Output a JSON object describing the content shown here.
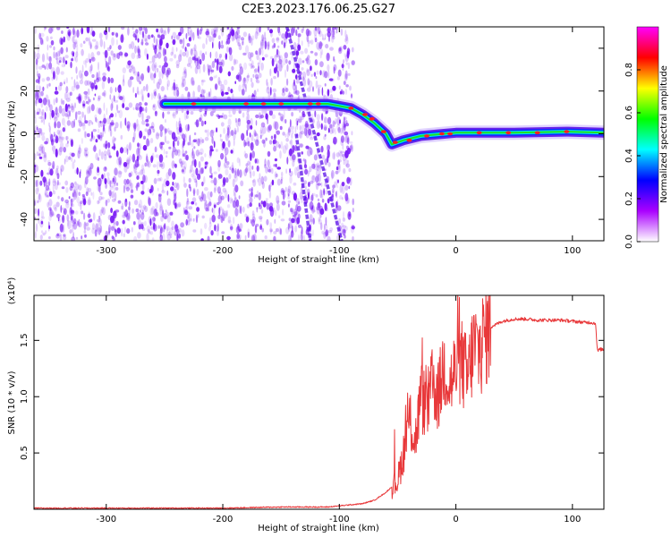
{
  "figure": {
    "title": "C2E3.2023.176.06.25.G27"
  },
  "chart_data": [
    {
      "type": "heatmap",
      "xlabel": "Height of straight line (km)",
      "ylabel": "Frequency (Hz)",
      "xlim": [
        -362,
        127
      ],
      "ylim": [
        -50,
        50
      ],
      "xticks": [
        -300,
        -200,
        -100,
        0,
        100
      ],
      "yticks": [
        -40,
        -20,
        0,
        20,
        40
      ],
      "colorbar": {
        "label": "Normalized spectral amplitude",
        "range": [
          0,
          1
        ],
        "ticks": [
          "0.0",
          "0.2",
          "0.4",
          "0.6",
          "0.8"
        ],
        "tick_values": [
          0,
          0.2,
          0.4,
          0.6,
          0.8
        ],
        "colormap": [
          "#ff00ff",
          "#ff0000",
          "#ffff00",
          "#00ff00",
          "#00ffff",
          "#0000ff",
          "#aa00ff",
          "#ffffff"
        ]
      },
      "noise_region": {
        "x_from": -362,
        "x_to": -88,
        "color": "#7a1cf5"
      },
      "features": [
        {
          "name": "signal-track",
          "points": [
            [
              -250,
              14
            ],
            [
              -200,
              14
            ],
            [
              -150,
              14
            ],
            [
              -110,
              14
            ],
            [
              -90,
              12
            ],
            [
              -80,
              9
            ],
            [
              -70,
              5
            ],
            [
              -60,
              0
            ],
            [
              -55,
              -5
            ],
            [
              -45,
              -3
            ],
            [
              -30,
              -1
            ],
            [
              -10,
              0
            ],
            [
              0,
              0.5
            ],
            [
              50,
              0.5
            ],
            [
              95,
              1
            ],
            [
              127,
              0.5
            ]
          ]
        },
        {
          "name": "slant-streak-1",
          "points": [
            [
              -145,
              50
            ],
            [
              -98,
              -50
            ]
          ]
        },
        {
          "name": "slant-streak-2",
          "points": [
            [
              -137,
              0
            ],
            [
              -125,
              -50
            ]
          ]
        }
      ]
    },
    {
      "type": "line",
      "xlabel": "Height of straight line (km)",
      "ylabel": "SNR (10 * v/v)",
      "exponent_label": "(x10⁴)",
      "xlim": [
        -362,
        127
      ],
      "ylim": [
        0,
        1.9
      ],
      "xticks": [
        -300,
        -200,
        -100,
        0,
        100
      ],
      "yticks": [
        0.5,
        1.0,
        1.5
      ],
      "series": [
        {
          "color": "#e8383a",
          "x": [
            -362,
            -300,
            -250,
            -200,
            -150,
            -110,
            -100,
            -90,
            -80,
            -70,
            -60,
            -50,
            -45,
            -40,
            -35,
            -30,
            -25,
            -20,
            -15,
            -10,
            -5,
            0,
            5,
            10,
            15,
            20,
            25,
            30,
            40,
            50,
            60,
            70,
            80,
            90,
            100,
            110,
            115,
            120,
            121,
            122,
            123,
            127
          ],
          "y": [
            0.01,
            0.01,
            0.01,
            0.01,
            0.02,
            0.02,
            0.03,
            0.04,
            0.05,
            0.08,
            0.15,
            0.25,
            0.5,
            0.8,
            0.6,
            1.0,
            0.9,
            1.1,
            1.0,
            1.3,
            1.1,
            1.25,
            1.3,
            1.15,
            1.45,
            1.4,
            1.55,
            1.62,
            1.67,
            1.69,
            1.69,
            1.68,
            1.68,
            1.68,
            1.67,
            1.66,
            1.66,
            1.65,
            1.45,
            1.4,
            1.42,
            1.42
          ]
        }
      ]
    }
  ]
}
